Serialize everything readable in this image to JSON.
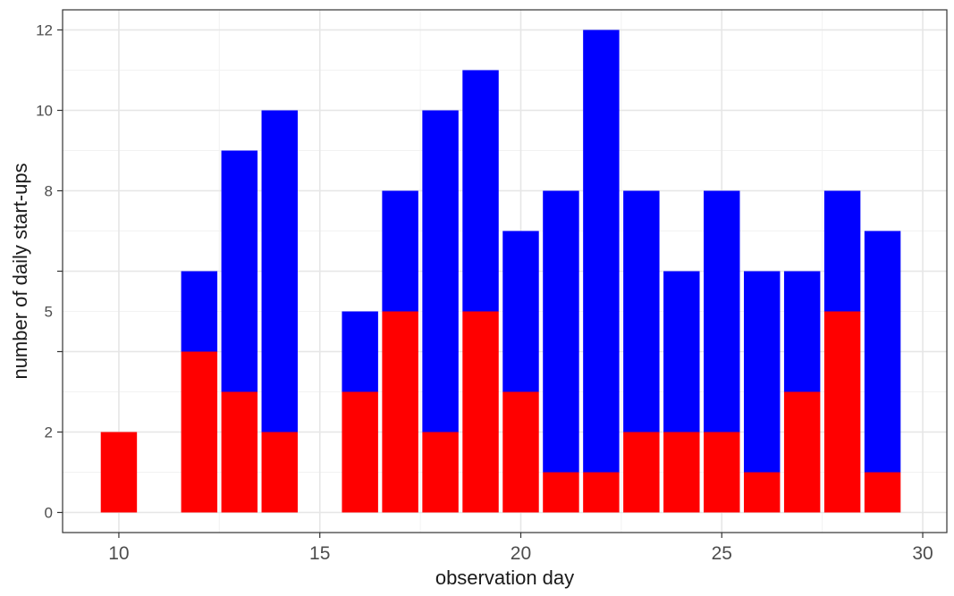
{
  "chart_data": {
    "type": "bar",
    "stacked": true,
    "title": "",
    "xlabel": "observation day",
    "ylabel": "number of daily start-ups",
    "xlim": [
      8.6,
      30.6
    ],
    "ylim": [
      -0.5,
      12.5
    ],
    "x_ticks": [
      10,
      15,
      20,
      25,
      30
    ],
    "y_ticks": [
      0,
      2,
      4,
      6,
      8,
      10,
      12
    ],
    "y_tick_labels": [
      "0",
      "2",
      "5",
      "8",
      "10",
      "12"
    ],
    "y_tick_label_values": [
      0,
      2,
      5,
      8,
      10,
      12
    ],
    "grid": true,
    "bar_width": 0.9,
    "x": [
      10,
      12,
      13,
      14,
      16,
      17,
      18,
      19,
      20,
      21,
      22,
      23,
      24,
      25,
      26,
      27,
      28,
      29
    ],
    "series": [
      {
        "name": "red",
        "color": "#ff0000",
        "values": [
          2,
          4,
          3,
          2,
          3,
          5,
          2,
          5,
          3,
          1,
          1,
          2,
          2,
          2,
          1,
          3,
          5,
          1
        ]
      },
      {
        "name": "blue",
        "color": "#0000ff",
        "values": [
          0,
          2,
          6,
          8,
          2,
          3,
          8,
          6,
          4,
          7,
          11,
          6,
          4,
          6,
          5,
          3,
          3,
          6
        ]
      }
    ]
  }
}
